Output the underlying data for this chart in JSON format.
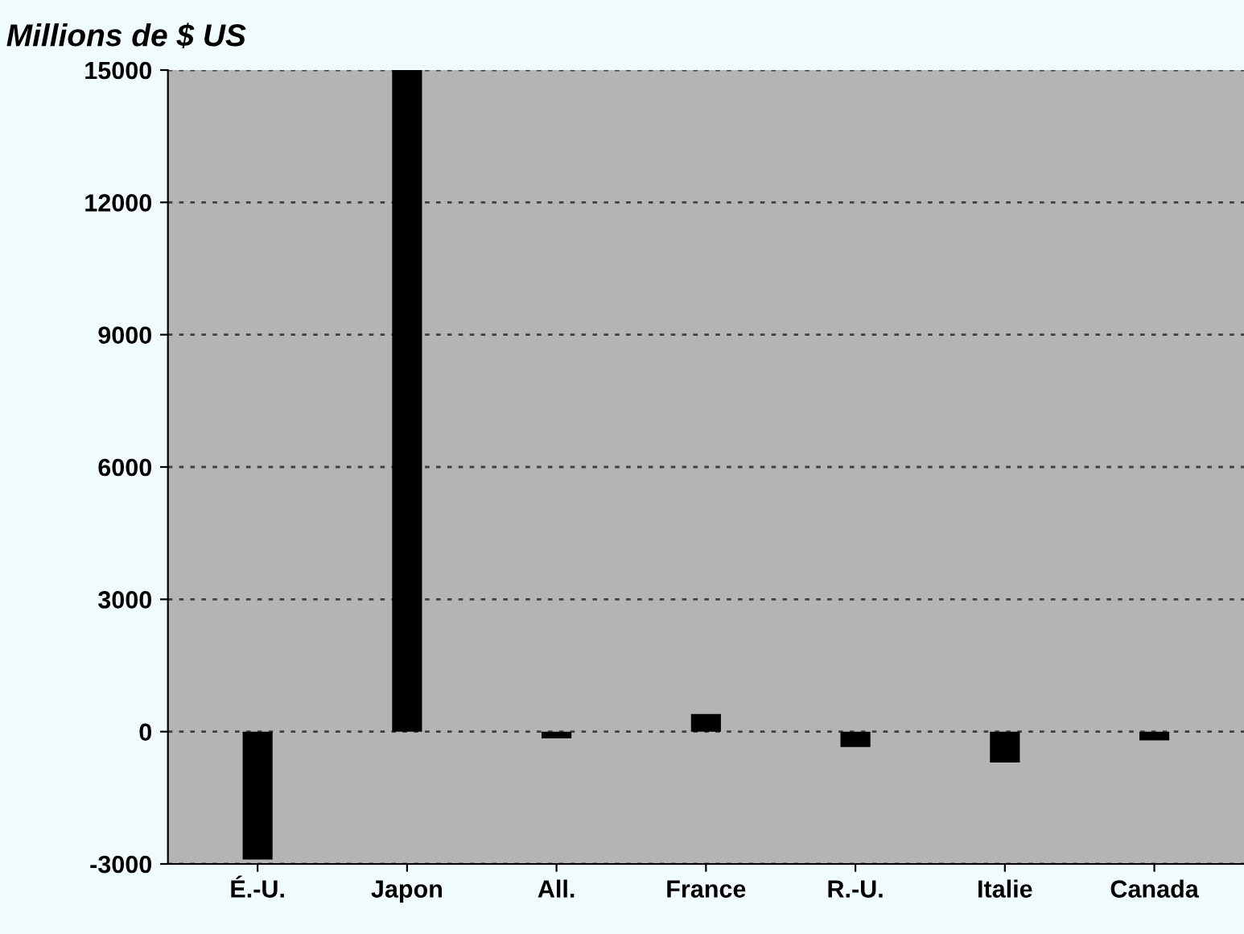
{
  "chart_data": {
    "type": "bar",
    "ylabel": "Millions de $ US",
    "categories": [
      "É.-U.",
      "Japon",
      "All.",
      "France",
      "R.-U.",
      "Italie",
      "Canada"
    ],
    "values": [
      -2900,
      15000,
      -150,
      400,
      -350,
      -700,
      -200
    ],
    "color": "#000000",
    "ylim": [
      -3000,
      15000
    ],
    "yticks": [
      -3000,
      0,
      3000,
      6000,
      9000,
      12000,
      15000
    ],
    "grid": "y"
  }
}
